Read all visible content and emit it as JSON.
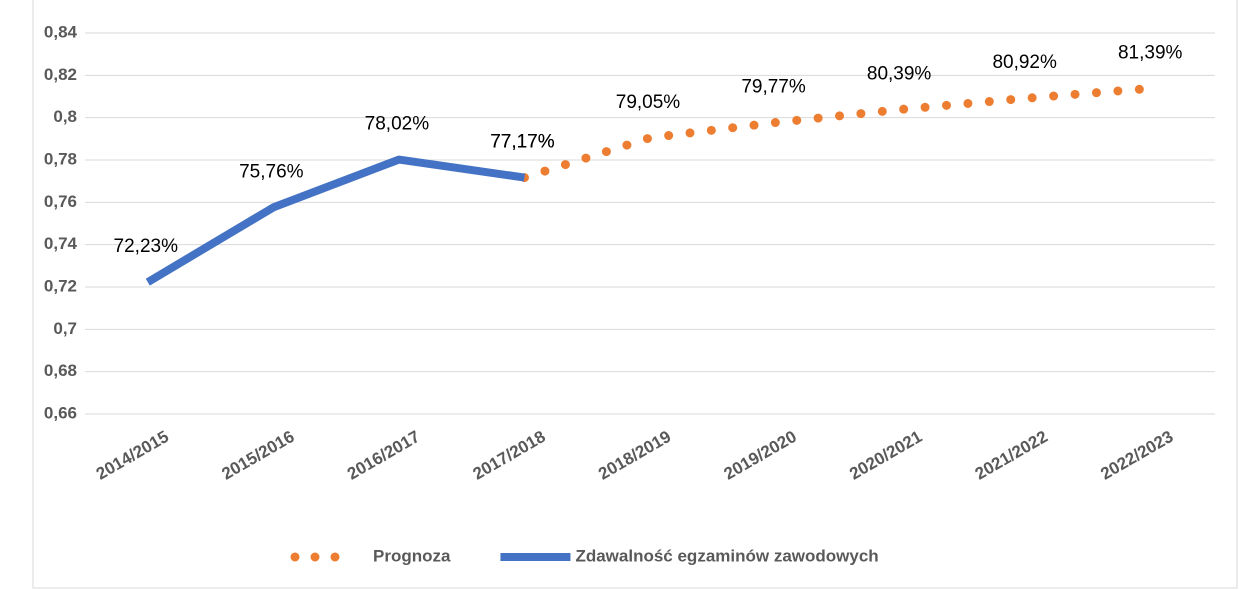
{
  "chart_data": {
    "type": "line",
    "categories": [
      "2014/2015",
      "2015/2016",
      "2016/2017",
      "2017/2018",
      "2018/2019",
      "2019/2020",
      "2020/2021",
      "2021/2022",
      "2022/2023"
    ],
    "series": [
      {
        "name": "Prognoza",
        "color": "#ed7d31",
        "style": "dotted",
        "values": [
          null,
          null,
          null,
          0.7717,
          0.7905,
          0.7977,
          0.8039,
          0.8092,
          0.8139
        ],
        "value_labels": [
          null,
          null,
          null,
          "77,17%",
          "79,05%",
          "79,77%",
          "80,39%",
          "80,92%",
          "81,39%"
        ]
      },
      {
        "name": "Zdawalność egzaminów zawodowych",
        "color": "#4472c4",
        "style": "solid",
        "values": [
          0.7223,
          0.7576,
          0.7802,
          0.7717,
          null,
          null,
          null,
          null,
          null
        ],
        "value_labels": [
          "72,23%",
          "75,76%",
          "78,02%",
          "77,17%",
          null,
          null,
          null,
          null,
          null
        ]
      }
    ],
    "ylim": [
      0.66,
      0.84
    ],
    "yticks": [
      {
        "value": 0.66,
        "label": "0,66"
      },
      {
        "value": 0.68,
        "label": "0,68"
      },
      {
        "value": 0.7,
        "label": "0,7"
      },
      {
        "value": 0.72,
        "label": "0,72"
      },
      {
        "value": 0.74,
        "label": "0,74"
      },
      {
        "value": 0.76,
        "label": "0,76"
      },
      {
        "value": 0.78,
        "label": "0,78"
      },
      {
        "value": 0.8,
        "label": "0,8"
      },
      {
        "value": 0.82,
        "label": "0,82"
      },
      {
        "value": 0.84,
        "label": "0,84"
      }
    ],
    "grid": true,
    "legend": "bottom"
  }
}
